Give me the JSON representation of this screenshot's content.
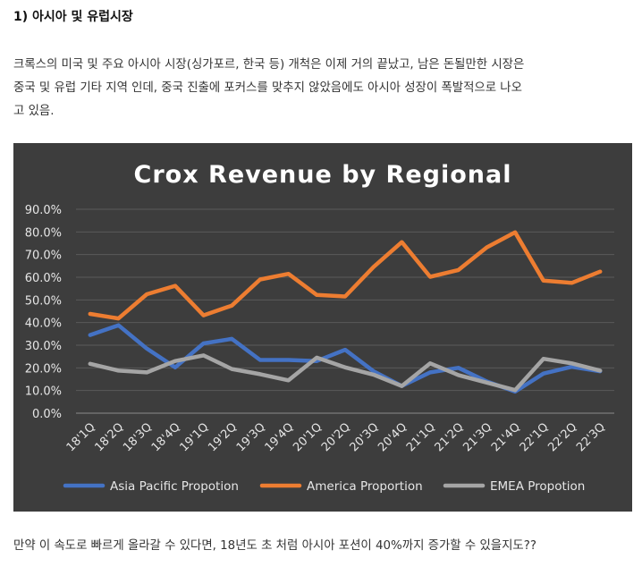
{
  "section_title": "1) 아시아 및 유럽시장",
  "paragraph_lines": [
    "크록스의 미국 및 주요 아시아 시장(싱가포르, 한국 등) 개척은 이제 거의 끝났고, 남은 돈될만한 시장은",
    "중국 및 유럽 기타 지역 인데, 중국 진출에 포커스를 맞추지 않았음에도 아시아 성장이 폭발적으로 나오",
    "고 있음."
  ],
  "footer_text": "만약 이 속도로 빠르게 올라갈 수 있다면, 18년도 초 처럼 아시아 포션이 40%까지 증가할 수 있을지도??",
  "chart_data": {
    "type": "line",
    "title": "Crox Revenue by Regional",
    "categories": [
      "18'1Q",
      "18'2Q",
      "18'3Q",
      "18'4Q",
      "19'1Q",
      "19'2Q",
      "19'3Q",
      "19'4Q",
      "20'1Q",
      "20'2Q",
      "20'3Q",
      "20'4Q",
      "21'1Q",
      "21'2Q",
      "21'3Q",
      "21'4Q",
      "22'1Q",
      "22'2Q",
      "22'3Q"
    ],
    "yticks": [
      "0.0%",
      "10.0%",
      "20.0%",
      "30.0%",
      "40.0%",
      "50.0%",
      "60.0%",
      "70.0%",
      "80.0%",
      "90.0%"
    ],
    "ylim": [
      0,
      90
    ],
    "grid": true,
    "legend_position": "bottom",
    "series": [
      {
        "name": "Asia Pacific Propotion",
        "color": "#4472c4",
        "values": [
          34.5,
          38.8,
          28.5,
          20.2,
          30.8,
          32.8,
          23.5,
          23.5,
          23.0,
          28.0,
          18.5,
          12.0,
          18.0,
          20.0,
          14.0,
          9.5,
          17.5,
          20.5,
          18.5
        ]
      },
      {
        "name": "America Proportion",
        "color": "#ed7d31",
        "values": [
          43.8,
          41.8,
          52.5,
          56.2,
          43.2,
          47.5,
          59.0,
          61.5,
          52.2,
          51.5,
          64.5,
          75.5,
          60.2,
          63.2,
          73.2,
          79.8,
          58.5,
          57.5,
          62.5
        ]
      },
      {
        "name": "EMEA Propotion",
        "color": "#a5a5a5",
        "values": [
          21.8,
          18.8,
          18.0,
          23.0,
          25.5,
          19.5,
          17.2,
          14.5,
          24.5,
          20.2,
          17.0,
          12.0,
          22.0,
          16.8,
          13.5,
          10.2,
          24.0,
          22.0,
          18.8
        ]
      }
    ]
  }
}
